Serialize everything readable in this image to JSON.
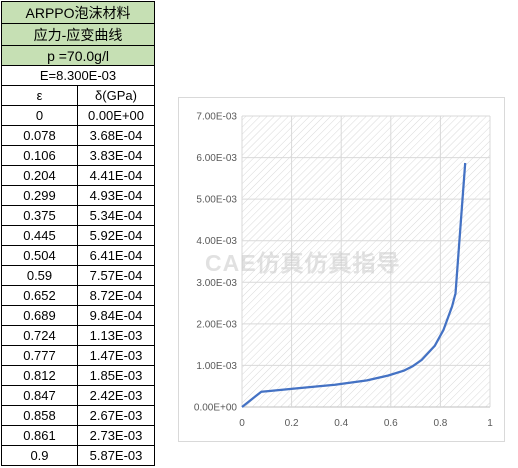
{
  "table": {
    "title_line1": "ARPPO泡沫材料",
    "title_line2": "应力-应变曲线",
    "density": "p =70.0g/l",
    "modulus": "E=8.300E-03",
    "col_strain": "ε",
    "col_stress": "δ(GPa)",
    "rows": [
      {
        "strain": "0",
        "stress": "0.00E+00"
      },
      {
        "strain": "0.078",
        "stress": "3.68E-04"
      },
      {
        "strain": "0.106",
        "stress": "3.83E-04"
      },
      {
        "strain": "0.204",
        "stress": "4.41E-04"
      },
      {
        "strain": "0.299",
        "stress": "4.93E-04"
      },
      {
        "strain": "0.375",
        "stress": "5.34E-04"
      },
      {
        "strain": "0.445",
        "stress": "5.92E-04"
      },
      {
        "strain": "0.504",
        "stress": "6.41E-04"
      },
      {
        "strain": "0.59",
        "stress": "7.57E-04"
      },
      {
        "strain": "0.652",
        "stress": "8.72E-04"
      },
      {
        "strain": "0.689",
        "stress": "9.84E-04"
      },
      {
        "strain": "0.724",
        "stress": "1.13E-03"
      },
      {
        "strain": "0.777",
        "stress": "1.47E-03"
      },
      {
        "strain": "0.812",
        "stress": "1.85E-03"
      },
      {
        "strain": "0.847",
        "stress": "2.42E-03"
      },
      {
        "strain": "0.858",
        "stress": "2.67E-03"
      },
      {
        "strain": "0.861",
        "stress": "2.73E-03"
      },
      {
        "strain": "0.9",
        "stress": "5.87E-03"
      }
    ]
  },
  "chart_data": {
    "type": "line",
    "title": "",
    "xlabel": "",
    "ylabel": "",
    "xlim": [
      0,
      1
    ],
    "ylim": [
      0,
      0.007
    ],
    "x_ticks": [
      0,
      0.2,
      0.4,
      0.6,
      0.8,
      1
    ],
    "x_tick_labels": [
      "0",
      "0.2",
      "0.4",
      "0.6",
      "0.8",
      "1"
    ],
    "y_ticks": [
      0,
      0.001,
      0.002,
      0.003,
      0.004,
      0.005,
      0.006,
      0.007
    ],
    "y_tick_labels": [
      "0.00E+00",
      "1.00E-03",
      "2.00E-03",
      "3.00E-03",
      "4.00E-03",
      "5.00E-03",
      "6.00E-03",
      "7.00E-03"
    ],
    "grid": true,
    "legend": "none",
    "line_color": "#4472c4",
    "series": [
      {
        "x": [
          0,
          0.078,
          0.106,
          0.204,
          0.299,
          0.375,
          0.445,
          0.504,
          0.59,
          0.652,
          0.689,
          0.724,
          0.777,
          0.812,
          0.847,
          0.858,
          0.861,
          0.9
        ],
        "y": [
          0,
          0.000368,
          0.000383,
          0.000441,
          0.000493,
          0.000534,
          0.000592,
          0.000641,
          0.000757,
          0.000872,
          0.000984,
          0.00113,
          0.00147,
          0.00185,
          0.00242,
          0.00267,
          0.00273,
          0.00587
        ]
      }
    ]
  },
  "watermark": "CAE仿真仿真指导"
}
